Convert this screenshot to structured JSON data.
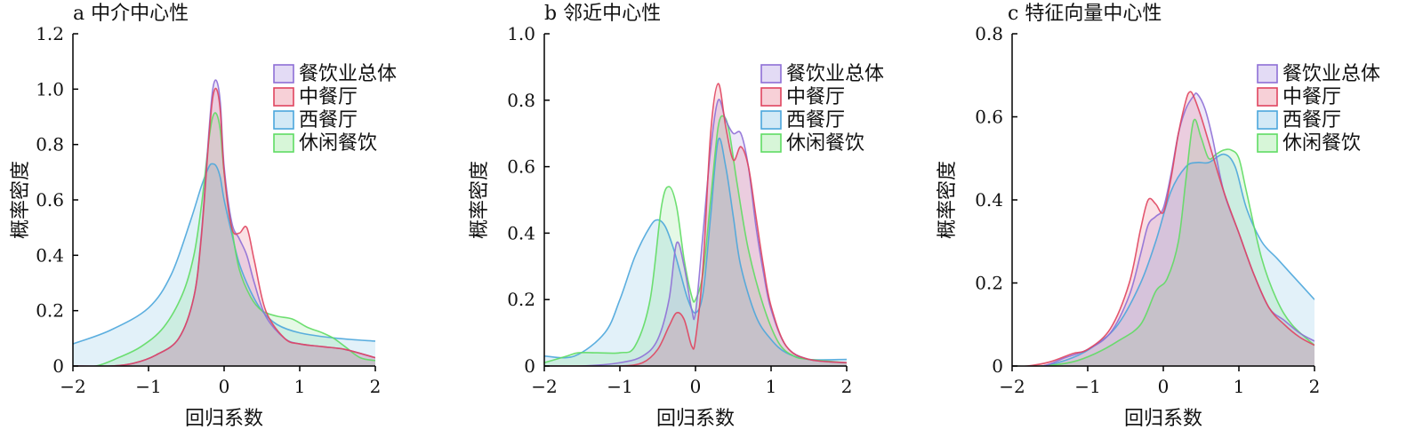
{
  "colors": {
    "餐饮业总体": "#8e6fd6",
    "中餐厅": "#e0455f",
    "西餐厅": "#4ba6dc",
    "休闲餐饮": "#5fdc63"
  },
  "chart_data": [
    {
      "type": "area",
      "title": "a 中介中心性",
      "xlabel": "回归系数",
      "ylabel": "概率密度",
      "xlim": [
        -2,
        2
      ],
      "ylim": [
        0,
        1.2
      ],
      "xticks": [
        -2,
        -1,
        0,
        1,
        2
      ],
      "xtick_labels": [
        "−2",
        "−1",
        "0",
        "1",
        "2"
      ],
      "yticks": [
        0,
        0.2,
        0.4,
        0.6,
        0.8,
        1.0,
        1.2
      ],
      "ytick_labels": [
        "0",
        "0.2",
        "0.4",
        "0.6",
        "0.8",
        "1.0",
        "1.2"
      ],
      "legend_position": "top-right",
      "grid": false,
      "series": [
        {
          "name": "西餐厅",
          "x": [
            -2.0,
            -1.5,
            -1.0,
            -0.7,
            -0.45,
            -0.3,
            -0.2,
            -0.15,
            -0.1,
            -0.05,
            0.0,
            0.1,
            0.2,
            0.35,
            0.5,
            0.7,
            1.0,
            1.5,
            2.0
          ],
          "y": [
            0.08,
            0.13,
            0.21,
            0.33,
            0.52,
            0.65,
            0.72,
            0.73,
            0.72,
            0.68,
            0.6,
            0.48,
            0.37,
            0.27,
            0.2,
            0.15,
            0.12,
            0.1,
            0.09
          ]
        },
        {
          "name": "休闲餐饮",
          "x": [
            -2.0,
            -1.7,
            -1.4,
            -1.1,
            -0.8,
            -0.55,
            -0.4,
            -0.3,
            -0.2,
            -0.15,
            -0.1,
            -0.05,
            0.0,
            0.1,
            0.2,
            0.35,
            0.5,
            0.7,
            0.9,
            1.1,
            1.3,
            1.45,
            1.6,
            1.8,
            2.0
          ],
          "y": [
            0.0,
            0.0,
            0.03,
            0.07,
            0.14,
            0.26,
            0.4,
            0.58,
            0.82,
            0.9,
            0.91,
            0.85,
            0.7,
            0.5,
            0.35,
            0.25,
            0.2,
            0.18,
            0.17,
            0.14,
            0.12,
            0.1,
            0.07,
            0.03,
            0.02
          ]
        },
        {
          "name": "餐饮业总体",
          "x": [
            -2.0,
            -1.5,
            -1.2,
            -0.9,
            -0.6,
            -0.4,
            -0.3,
            -0.2,
            -0.15,
            -0.1,
            -0.05,
            0.0,
            0.1,
            0.2,
            0.3,
            0.4,
            0.55,
            0.8,
            1.0,
            1.3,
            1.6,
            2.0
          ],
          "y": [
            0.0,
            0.0,
            0.01,
            0.04,
            0.1,
            0.25,
            0.48,
            0.85,
            1.0,
            1.03,
            0.95,
            0.72,
            0.52,
            0.46,
            0.4,
            0.3,
            0.18,
            0.1,
            0.08,
            0.07,
            0.06,
            0.03
          ]
        },
        {
          "name": "中餐厅",
          "x": [
            -2.0,
            -1.5,
            -1.2,
            -0.9,
            -0.6,
            -0.4,
            -0.3,
            -0.2,
            -0.15,
            -0.1,
            -0.05,
            0.0,
            0.1,
            0.2,
            0.3,
            0.4,
            0.55,
            0.8,
            1.0,
            1.3,
            1.6,
            2.0
          ],
          "y": [
            0.0,
            0.0,
            0.01,
            0.04,
            0.1,
            0.25,
            0.47,
            0.83,
            0.97,
            1.0,
            0.92,
            0.7,
            0.5,
            0.48,
            0.5,
            0.38,
            0.2,
            0.1,
            0.08,
            0.07,
            0.06,
            0.03
          ]
        }
      ]
    },
    {
      "type": "area",
      "title": "b 邻近中心性",
      "xlabel": "回归系数",
      "ylabel": "概率密度",
      "xlim": [
        -2,
        2
      ],
      "ylim": [
        0,
        1.0
      ],
      "xticks": [
        -2,
        -1,
        0,
        1,
        2
      ],
      "xtick_labels": [
        "−2",
        "−1",
        "0",
        "1",
        "2"
      ],
      "yticks": [
        0,
        0.2,
        0.4,
        0.6,
        0.8,
        1.0
      ],
      "ytick_labels": [
        "0",
        "0.2",
        "0.4",
        "0.6",
        "0.8",
        "1.0"
      ],
      "legend_position": "top-right",
      "grid": false,
      "series": [
        {
          "name": "西餐厅",
          "x": [
            -2.0,
            -1.6,
            -1.2,
            -1.0,
            -0.8,
            -0.6,
            -0.5,
            -0.4,
            -0.3,
            -0.2,
            -0.1,
            0.0,
            0.1,
            0.2,
            0.3,
            0.4,
            0.5,
            0.6,
            0.8,
            1.0,
            1.2,
            1.5,
            2.0
          ],
          "y": [
            0.03,
            0.03,
            0.1,
            0.2,
            0.33,
            0.42,
            0.44,
            0.42,
            0.36,
            0.28,
            0.2,
            0.16,
            0.22,
            0.45,
            0.68,
            0.6,
            0.45,
            0.3,
            0.15,
            0.08,
            0.04,
            0.02,
            0.02
          ]
        },
        {
          "name": "休闲餐饮",
          "x": [
            -2.0,
            -1.7,
            -1.55,
            -1.3,
            -1.0,
            -0.8,
            -0.6,
            -0.45,
            -0.35,
            -0.25,
            -0.15,
            -0.05,
            0.0,
            0.1,
            0.2,
            0.3,
            0.38,
            0.45,
            0.55,
            0.7,
            0.9,
            1.1,
            1.3,
            1.5,
            2.0
          ],
          "y": [
            0.01,
            0.03,
            0.04,
            0.04,
            0.04,
            0.06,
            0.2,
            0.48,
            0.54,
            0.48,
            0.32,
            0.21,
            0.2,
            0.28,
            0.5,
            0.72,
            0.75,
            0.7,
            0.55,
            0.35,
            0.18,
            0.07,
            0.03,
            0.02,
            0.01
          ]
        },
        {
          "name": "餐饮业总体",
          "x": [
            -2.0,
            -1.5,
            -1.0,
            -0.7,
            -0.5,
            -0.35,
            -0.25,
            -0.15,
            -0.05,
            0.0,
            0.1,
            0.2,
            0.3,
            0.4,
            0.5,
            0.6,
            0.7,
            0.8,
            0.9,
            1.0,
            1.2,
            1.5,
            2.0
          ],
          "y": [
            0.0,
            0.0,
            0.01,
            0.03,
            0.08,
            0.2,
            0.37,
            0.3,
            0.17,
            0.16,
            0.4,
            0.65,
            0.8,
            0.74,
            0.7,
            0.7,
            0.6,
            0.42,
            0.28,
            0.17,
            0.06,
            0.02,
            0.01
          ]
        },
        {
          "name": "中餐厅",
          "x": [
            -2.0,
            -1.5,
            -1.0,
            -0.7,
            -0.5,
            -0.35,
            -0.25,
            -0.15,
            -0.05,
            0.0,
            0.1,
            0.2,
            0.3,
            0.4,
            0.5,
            0.6,
            0.7,
            0.8,
            0.9,
            1.0,
            1.2,
            1.5,
            2.0
          ],
          "y": [
            0.0,
            0.0,
            0.0,
            0.01,
            0.05,
            0.12,
            0.16,
            0.14,
            0.06,
            0.08,
            0.3,
            0.7,
            0.85,
            0.72,
            0.62,
            0.66,
            0.6,
            0.45,
            0.3,
            0.18,
            0.06,
            0.02,
            0.01
          ]
        }
      ]
    },
    {
      "type": "area",
      "title": "c 特征向量中心性",
      "xlabel": "回归系数",
      "ylabel": "概率密度",
      "xlim": [
        -2,
        2
      ],
      "ylim": [
        0,
        0.8
      ],
      "xticks": [
        -2,
        -1,
        0,
        1,
        2
      ],
      "xtick_labels": [
        "−2",
        "−1",
        "0",
        "1",
        "2"
      ],
      "yticks": [
        0,
        0.2,
        0.4,
        0.6,
        0.8
      ],
      "ytick_labels": [
        "0",
        "0.2",
        "0.4",
        "0.6",
        "0.8"
      ],
      "legend_position": "top-right",
      "grid": false,
      "series": [
        {
          "name": "西餐厅",
          "x": [
            -2.0,
            -1.6,
            -1.2,
            -0.9,
            -0.6,
            -0.3,
            -0.1,
            0.1,
            0.3,
            0.45,
            0.6,
            0.8,
            0.95,
            1.1,
            1.3,
            1.5,
            1.7,
            2.0
          ],
          "y": [
            0.0,
            0.0,
            0.02,
            0.05,
            0.1,
            0.2,
            0.3,
            0.42,
            0.48,
            0.49,
            0.49,
            0.51,
            0.48,
            0.38,
            0.3,
            0.26,
            0.22,
            0.16
          ]
        },
        {
          "name": "休闲餐饮",
          "x": [
            -2.0,
            -1.6,
            -1.2,
            -0.9,
            -0.6,
            -0.3,
            -0.1,
            0.05,
            0.2,
            0.3,
            0.4,
            0.5,
            0.6,
            0.7,
            0.8,
            0.9,
            1.0,
            1.1,
            1.3,
            1.5,
            1.7,
            2.0
          ],
          "y": [
            0.0,
            0.0,
            0.01,
            0.03,
            0.06,
            0.1,
            0.18,
            0.21,
            0.3,
            0.45,
            0.59,
            0.55,
            0.5,
            0.51,
            0.52,
            0.52,
            0.5,
            0.42,
            0.26,
            0.16,
            0.1,
            0.05
          ]
        },
        {
          "name": "餐饮业总体",
          "x": [
            -2.0,
            -1.6,
            -1.3,
            -1.0,
            -0.7,
            -0.45,
            -0.3,
            -0.2,
            -0.1,
            0.0,
            0.1,
            0.2,
            0.3,
            0.4,
            0.45,
            0.55,
            0.65,
            0.8,
            1.0,
            1.2,
            1.4,
            1.6,
            1.8,
            2.0
          ],
          "y": [
            0.0,
            0.0,
            0.02,
            0.04,
            0.08,
            0.17,
            0.27,
            0.34,
            0.36,
            0.38,
            0.46,
            0.56,
            0.62,
            0.65,
            0.655,
            0.62,
            0.55,
            0.42,
            0.32,
            0.22,
            0.14,
            0.11,
            0.08,
            0.06
          ]
        },
        {
          "name": "中餐厅",
          "x": [
            -2.0,
            -1.8,
            -1.5,
            -1.2,
            -1.0,
            -0.7,
            -0.45,
            -0.3,
            -0.2,
            -0.1,
            0.0,
            0.1,
            0.2,
            0.3,
            0.35,
            0.4,
            0.5,
            0.6,
            0.8,
            1.0,
            1.2,
            1.4,
            1.6,
            1.8,
            2.0
          ],
          "y": [
            0.0,
            0.0,
            0.01,
            0.03,
            0.04,
            0.09,
            0.2,
            0.33,
            0.4,
            0.39,
            0.37,
            0.45,
            0.56,
            0.64,
            0.66,
            0.65,
            0.6,
            0.54,
            0.42,
            0.32,
            0.22,
            0.14,
            0.1,
            0.07,
            0.05
          ]
        }
      ]
    }
  ]
}
